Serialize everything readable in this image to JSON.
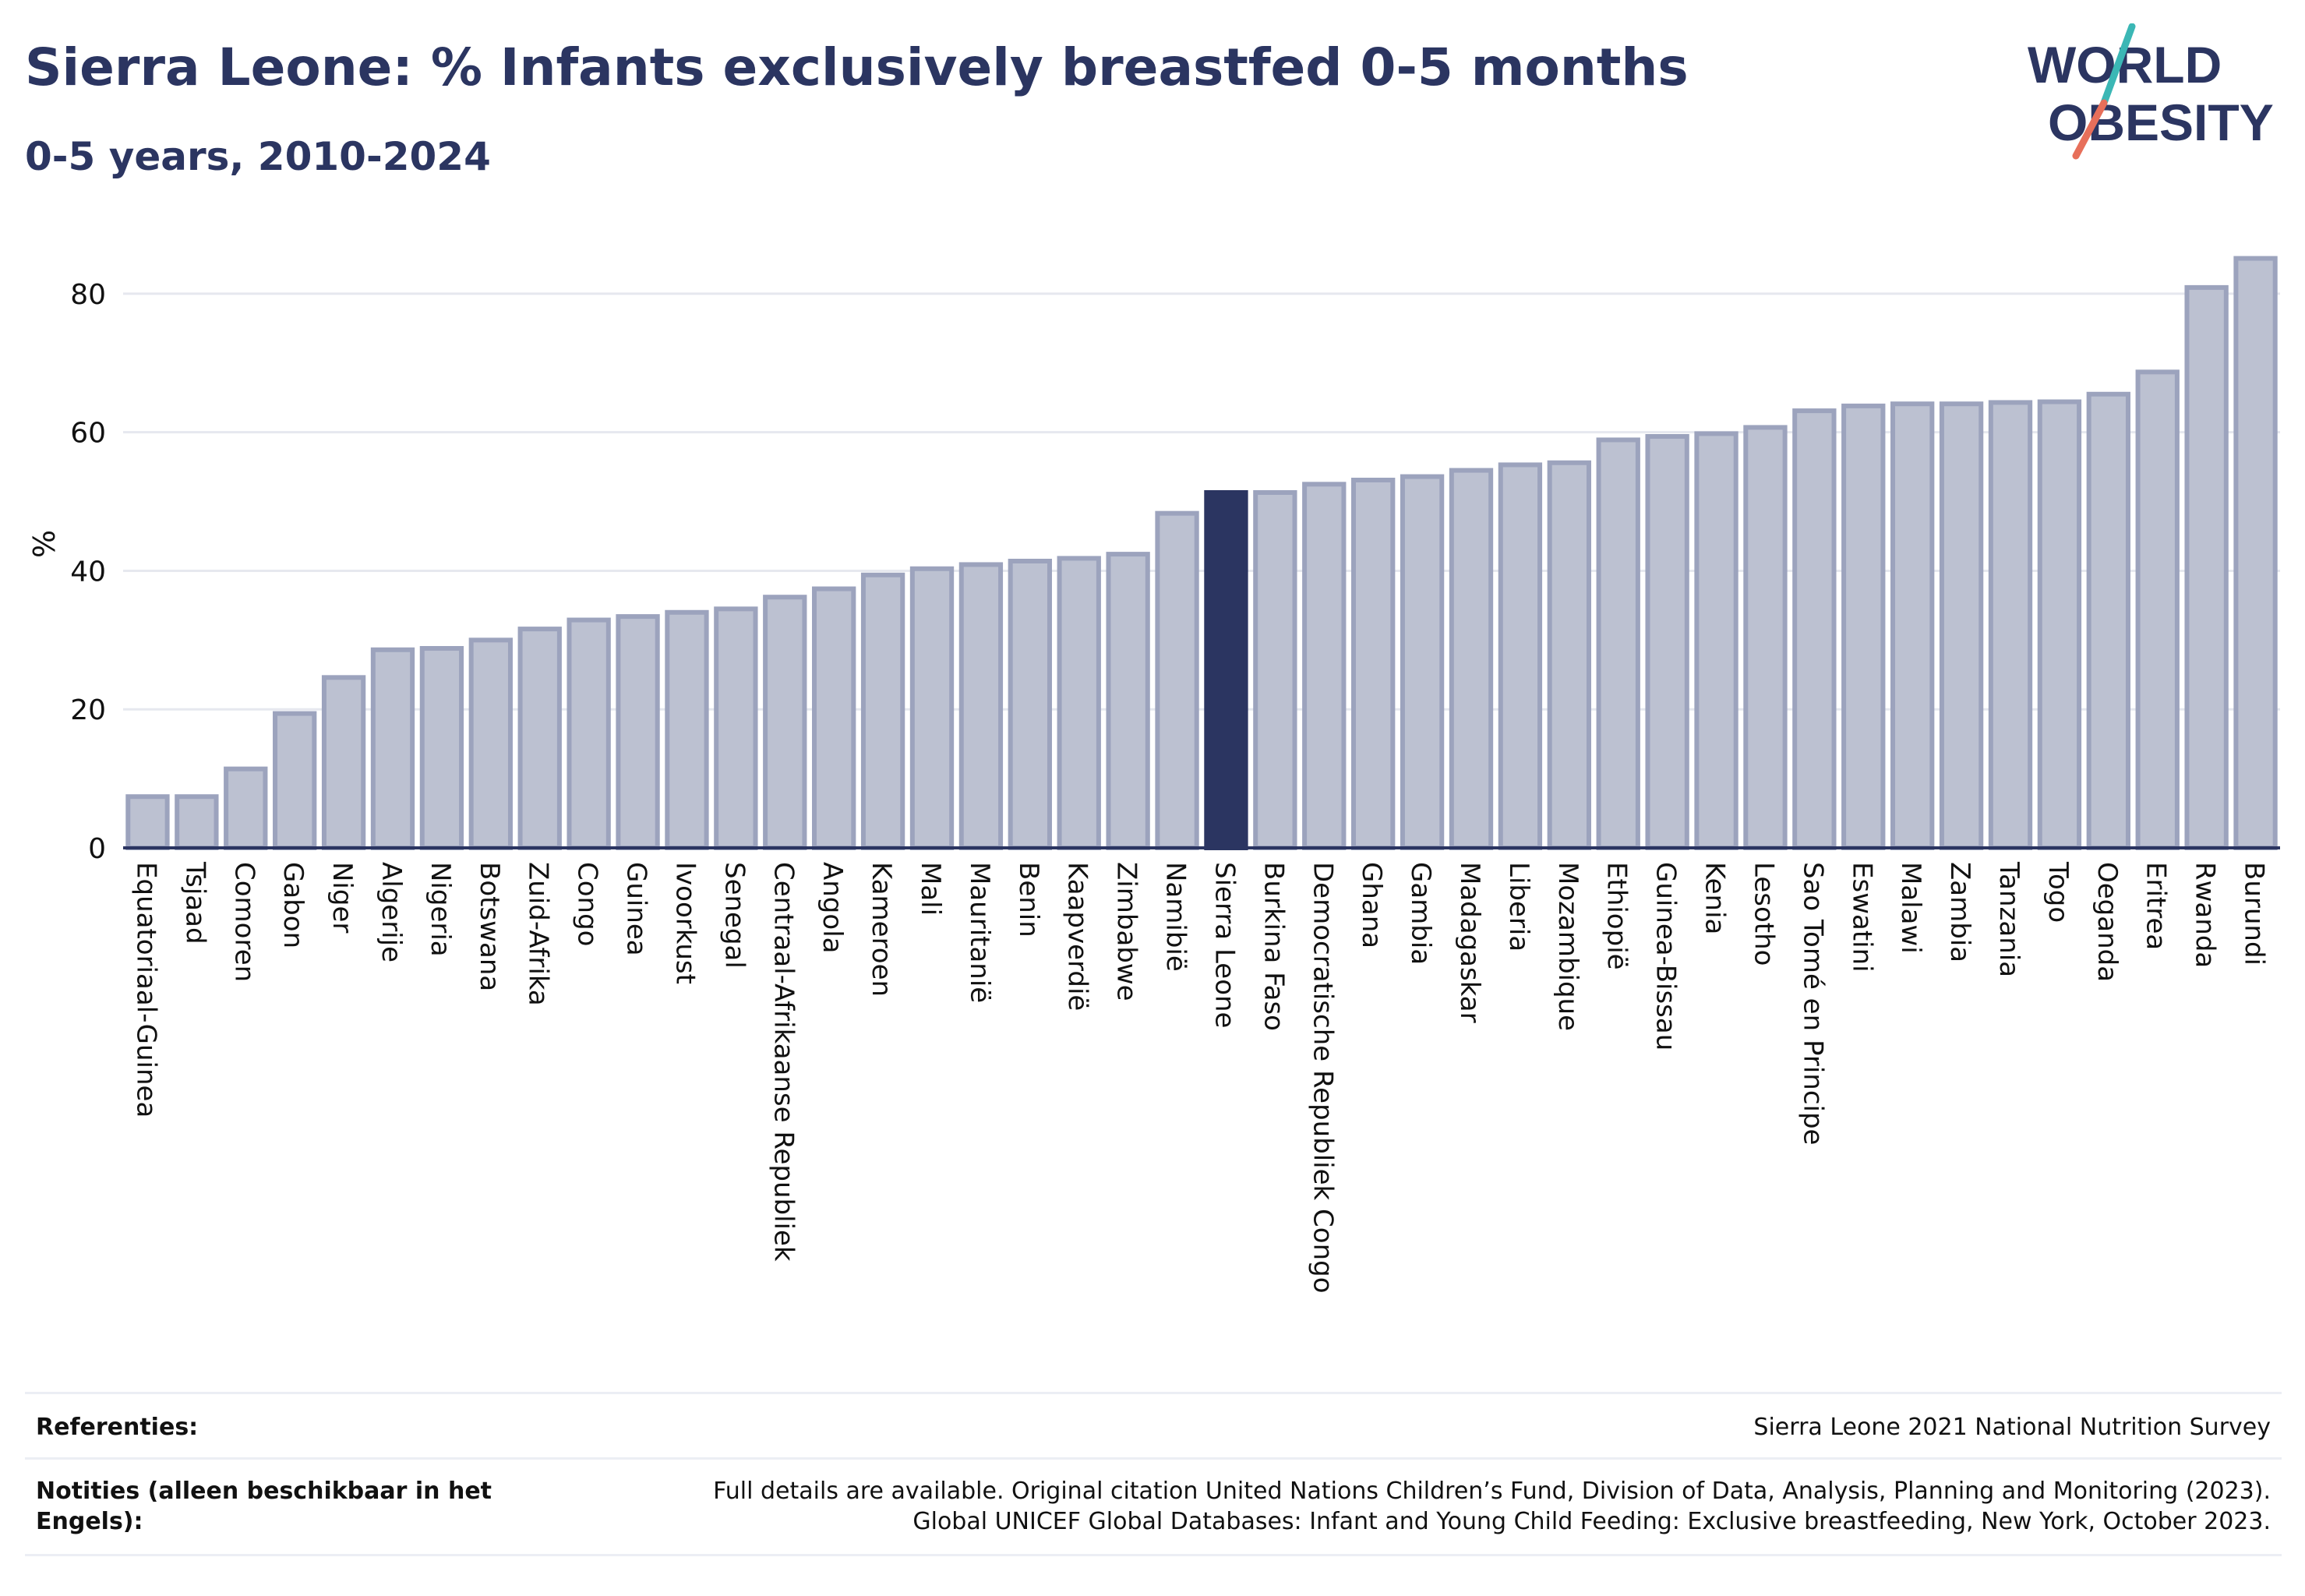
{
  "title": "Sierra Leone: % Infants exclusively breastfed 0-5 months",
  "subtitle": "0-5 years, 2010-2024",
  "logo": {
    "line1": "WORLD",
    "line2": "OBESITY"
  },
  "colors": {
    "bar_fill": "#bcc1d1",
    "bar_stroke": "#9ca3bd",
    "highlight": "#2b3561",
    "grid": "#e6e8ef",
    "text": "#2b3561",
    "logo_teal": "#3bb7b5",
    "logo_coral": "#e76f5a"
  },
  "chart_data": {
    "type": "bar",
    "ylabel": "%",
    "ylim": [
      0,
      90
    ],
    "yticks": [
      0,
      20,
      40,
      60,
      80
    ],
    "grid": true,
    "highlight": "Sierra Leone",
    "categories": [
      "Equatoriaal-Guinea",
      "Tsjaad",
      "Comoren",
      "Gabon",
      "Niger",
      "Algerije",
      "Nigeria",
      "Botswana",
      "Zuid-Afrika",
      "Congo",
      "Guinea",
      "Ivoorkust",
      "Senegal",
      "Centraal-Afrikaanse Republiek",
      "Angola",
      "Kameroen",
      "Mali",
      "Mauritanië",
      "Benin",
      "Kaapverdië",
      "Zimbabwe",
      "Namibië",
      "Sierra Leone",
      "Burkina Faso",
      "Democratische Republiek Congo",
      "Ghana",
      "Gambia",
      "Madagaskar",
      "Liberia",
      "Mozambique",
      "Ethiopië",
      "Guinea-Bissau",
      "Kenia",
      "Lesotho",
      "Sao Tomé en Principe",
      "Eswatini",
      "Malawi",
      "Zambia",
      "Tanzania",
      "Togo",
      "Oeganda",
      "Eritrea",
      "Rwanda",
      "Burundi"
    ],
    "values": [
      7.4,
      7.4,
      11.4,
      19.4,
      24.6,
      28.6,
      28.8,
      30.0,
      31.6,
      32.9,
      33.4,
      34.0,
      34.5,
      36.2,
      37.4,
      39.4,
      40.3,
      40.9,
      41.4,
      41.8,
      42.4,
      48.3,
      51.3,
      51.3,
      52.5,
      53.1,
      53.6,
      54.5,
      55.3,
      55.6,
      58.9,
      59.4,
      59.8,
      60.7,
      63.1,
      63.8,
      64.1,
      64.1,
      64.3,
      64.4,
      65.5,
      68.7,
      80.9,
      85.1
    ]
  },
  "footer": {
    "references_label": "Referenties:",
    "references_value": "Sierra Leone 2021 National Nutrition Survey",
    "notes_label_line1": "Notities (alleen beschikbaar in het",
    "notes_label_line2": "Engels):",
    "notes_value_line1": "Full details are available. Original citation United Nations Children’s Fund, Division of Data, Analysis, Planning and Monitoring (2023).",
    "notes_value_line2": "Global UNICEF Global Databases: Infant and Young Child Feeding: Exclusive breastfeeding, New York, October 2023."
  }
}
